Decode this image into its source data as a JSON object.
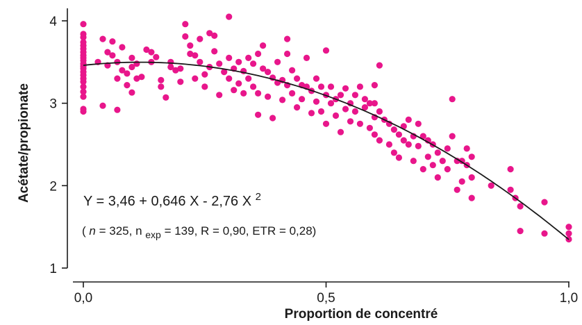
{
  "chart_data": {
    "type": "scatter",
    "title": "",
    "xlabel": "Proportion de concentré",
    "ylabel": "Acétate/propionate",
    "xlim": [
      -0.04,
      1.02
    ],
    "ylim": [
      1.0,
      4.2
    ],
    "x_ticks": [
      0.0,
      0.5,
      1.0
    ],
    "x_tick_labels": [
      "0,0",
      "0,5",
      "1,0"
    ],
    "y_ticks": [
      1,
      2,
      3,
      4
    ],
    "y_tick_labels": [
      "1",
      "2",
      "3",
      "4"
    ],
    "grid": false,
    "point_color": "#e8168b",
    "curve_color": "#1a1a1a",
    "fit": {
      "intercept": 3.46,
      "b1": 0.646,
      "b2": -2.76,
      "x_range": [
        0.0,
        1.0
      ]
    },
    "equation": {
      "lhs": "Y = 3,46 + 0,646 X - 2,76 X",
      "exponent": "2"
    },
    "stats": {
      "open": "(",
      "n_label": "n",
      "n_value": " = 325, n",
      "nexp_sub": "exp",
      "rest": " = 139, R = 0,90, ETR = 0,28)"
    },
    "points": [
      [
        0.0,
        3.96
      ],
      [
        0.0,
        3.84
      ],
      [
        0.0,
        3.8
      ],
      [
        0.0,
        3.74
      ],
      [
        0.0,
        3.7
      ],
      [
        0.0,
        3.66
      ],
      [
        0.0,
        3.62
      ],
      [
        0.0,
        3.58
      ],
      [
        0.0,
        3.55
      ],
      [
        0.0,
        3.52
      ],
      [
        0.0,
        3.48
      ],
      [
        0.0,
        3.45
      ],
      [
        0.0,
        3.42
      ],
      [
        0.0,
        3.38
      ],
      [
        0.0,
        3.34
      ],
      [
        0.0,
        3.3
      ],
      [
        0.0,
        3.26
      ],
      [
        0.0,
        3.2
      ],
      [
        0.0,
        3.14
      ],
      [
        0.0,
        3.08
      ],
      [
        0.0,
        2.93
      ],
      [
        0.0,
        2.9
      ],
      [
        0.03,
        3.5
      ],
      [
        0.04,
        3.78
      ],
      [
        0.04,
        2.97
      ],
      [
        0.05,
        3.62
      ],
      [
        0.05,
        3.46
      ],
      [
        0.06,
        3.75
      ],
      [
        0.06,
        3.58
      ],
      [
        0.07,
        3.5
      ],
      [
        0.07,
        3.3
      ],
      [
        0.07,
        2.92
      ],
      [
        0.08,
        3.68
      ],
      [
        0.08,
        3.4
      ],
      [
        0.09,
        3.36
      ],
      [
        0.09,
        3.22
      ],
      [
        0.1,
        3.55
      ],
      [
        0.1,
        3.44
      ],
      [
        0.1,
        3.13
      ],
      [
        0.11,
        3.48
      ],
      [
        0.11,
        3.3
      ],
      [
        0.12,
        3.32
      ],
      [
        0.13,
        3.65
      ],
      [
        0.14,
        3.62
      ],
      [
        0.14,
        3.5
      ],
      [
        0.15,
        3.56
      ],
      [
        0.16,
        3.28
      ],
      [
        0.16,
        3.2
      ],
      [
        0.17,
        3.07
      ],
      [
        0.18,
        3.44
      ],
      [
        0.18,
        3.5
      ],
      [
        0.19,
        3.4
      ],
      [
        0.2,
        3.42
      ],
      [
        0.2,
        3.26
      ],
      [
        0.21,
        3.96
      ],
      [
        0.21,
        3.81
      ],
      [
        0.22,
        3.7
      ],
      [
        0.22,
        3.6
      ],
      [
        0.23,
        3.3
      ],
      [
        0.23,
        3.58
      ],
      [
        0.24,
        3.78
      ],
      [
        0.24,
        3.5
      ],
      [
        0.25,
        3.35
      ],
      [
        0.25,
        3.2
      ],
      [
        0.26,
        3.85
      ],
      [
        0.26,
        3.44
      ],
      [
        0.27,
        3.82
      ],
      [
        0.27,
        3.63
      ],
      [
        0.28,
        3.48
      ],
      [
        0.28,
        3.1
      ],
      [
        0.29,
        3.38
      ],
      [
        0.3,
        4.05
      ],
      [
        0.3,
        3.55
      ],
      [
        0.3,
        3.3
      ],
      [
        0.31,
        3.42
      ],
      [
        0.31,
        3.16
      ],
      [
        0.32,
        3.5
      ],
      [
        0.32,
        3.24
      ],
      [
        0.33,
        3.39
      ],
      [
        0.33,
        3.12
      ],
      [
        0.34,
        3.55
      ],
      [
        0.34,
        3.3
      ],
      [
        0.35,
        3.48
      ],
      [
        0.35,
        3.2
      ],
      [
        0.36,
        3.6
      ],
      [
        0.36,
        3.12
      ],
      [
        0.36,
        2.86
      ],
      [
        0.37,
        3.42
      ],
      [
        0.37,
        3.7
      ],
      [
        0.38,
        3.38
      ],
      [
        0.38,
        3.08
      ],
      [
        0.39,
        3.31
      ],
      [
        0.39,
        2.82
      ],
      [
        0.4,
        3.25
      ],
      [
        0.4,
        3.5
      ],
      [
        0.41,
        3.28
      ],
      [
        0.41,
        3.04
      ],
      [
        0.42,
        3.78
      ],
      [
        0.42,
        3.6
      ],
      [
        0.42,
        3.22
      ],
      [
        0.43,
        3.4
      ],
      [
        0.43,
        3.12
      ],
      [
        0.44,
        3.3
      ],
      [
        0.44,
        2.95
      ],
      [
        0.45,
        3.22
      ],
      [
        0.45,
        3.05
      ],
      [
        0.46,
        3.55
      ],
      [
        0.46,
        3.2
      ],
      [
        0.47,
        3.15
      ],
      [
        0.47,
        2.88
      ],
      [
        0.48,
        3.3
      ],
      [
        0.48,
        3.02
      ],
      [
        0.49,
        3.2
      ],
      [
        0.49,
        2.9
      ],
      [
        0.5,
        3.64
      ],
      [
        0.5,
        3.1
      ],
      [
        0.5,
        2.75
      ],
      [
        0.51,
        3.2
      ],
      [
        0.51,
        3.0
      ],
      [
        0.52,
        3.05
      ],
      [
        0.52,
        2.85
      ],
      [
        0.53,
        3.1
      ],
      [
        0.53,
        2.65
      ],
      [
        0.54,
        3.18
      ],
      [
        0.54,
        2.93
      ],
      [
        0.55,
        3.0
      ],
      [
        0.55,
        2.78
      ],
      [
        0.56,
        3.1
      ],
      [
        0.56,
        2.9
      ],
      [
        0.57,
        3.2
      ],
      [
        0.57,
        2.75
      ],
      [
        0.58,
        3.05
      ],
      [
        0.58,
        2.95
      ],
      [
        0.59,
        3.0
      ],
      [
        0.59,
        2.7
      ],
      [
        0.6,
        3.22
      ],
      [
        0.6,
        3.0
      ],
      [
        0.6,
        2.83
      ],
      [
        0.6,
        2.62
      ],
      [
        0.61,
        3.46
      ],
      [
        0.61,
        2.9
      ],
      [
        0.61,
        2.55
      ],
      [
        0.62,
        2.8
      ],
      [
        0.63,
        2.75
      ],
      [
        0.63,
        2.5
      ],
      [
        0.64,
        2.68
      ],
      [
        0.64,
        2.4
      ],
      [
        0.65,
        2.62
      ],
      [
        0.65,
        2.34
      ],
      [
        0.66,
        2.72
      ],
      [
        0.66,
        2.55
      ],
      [
        0.67,
        2.8
      ],
      [
        0.67,
        2.5
      ],
      [
        0.68,
        2.6
      ],
      [
        0.68,
        2.3
      ],
      [
        0.69,
        2.75
      ],
      [
        0.69,
        2.48
      ],
      [
        0.7,
        2.6
      ],
      [
        0.7,
        2.2
      ],
      [
        0.71,
        2.55
      ],
      [
        0.71,
        2.35
      ],
      [
        0.72,
        2.5
      ],
      [
        0.72,
        2.25
      ],
      [
        0.73,
        2.4
      ],
      [
        0.73,
        2.1
      ],
      [
        0.74,
        2.3
      ],
      [
        0.75,
        2.45
      ],
      [
        0.75,
        2.2
      ],
      [
        0.76,
        3.05
      ],
      [
        0.76,
        2.6
      ],
      [
        0.77,
        2.3
      ],
      [
        0.77,
        1.95
      ],
      [
        0.78,
        2.3
      ],
      [
        0.78,
        2.05
      ],
      [
        0.79,
        2.25
      ],
      [
        0.79,
        2.45
      ],
      [
        0.8,
        2.1
      ],
      [
        0.8,
        2.35
      ],
      [
        0.8,
        1.85
      ],
      [
        0.84,
        2.0
      ],
      [
        0.88,
        2.2
      ],
      [
        0.88,
        1.95
      ],
      [
        0.89,
        1.85
      ],
      [
        0.9,
        1.75
      ],
      [
        0.9,
        1.45
      ],
      [
        0.95,
        1.8
      ],
      [
        0.95,
        1.42
      ],
      [
        1.0,
        1.5
      ],
      [
        1.0,
        1.42
      ],
      [
        1.0,
        1.35
      ]
    ]
  }
}
